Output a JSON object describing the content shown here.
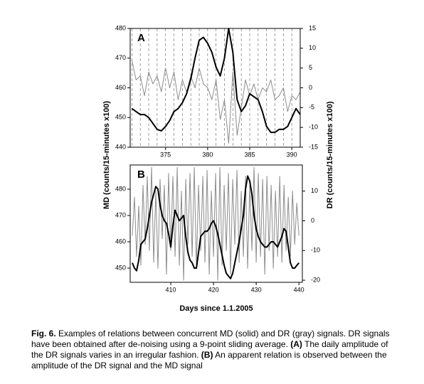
{
  "chart_data": [
    {
      "type": "line",
      "panel_label": "A",
      "x": [
        371,
        371.5,
        372,
        372.5,
        373,
        373.5,
        374,
        374.5,
        375,
        375.5,
        376,
        376.5,
        377,
        377.5,
        378,
        378.5,
        379,
        379.5,
        380,
        380.5,
        381,
        381.5,
        382,
        382.5,
        383,
        383.5,
        384,
        384.5,
        385,
        385.5,
        386,
        386.5,
        387,
        387.5,
        388,
        388.5,
        389,
        389.5,
        390,
        390.5,
        391
      ],
      "xlim": [
        370.8,
        391
      ],
      "xticks": [
        375,
        380,
        385,
        390
      ],
      "ylim": [
        440,
        480
      ],
      "yticks": [
        440,
        450,
        460,
        470,
        480
      ],
      "y2lim": [
        -15,
        15
      ],
      "y2ticks": [
        -15,
        -10,
        -5,
        0,
        5,
        10,
        15
      ],
      "day_grid": true,
      "series": [
        {
          "name": "MD",
          "color": "#000000",
          "values": [
            453,
            452,
            451,
            451,
            450,
            448,
            446,
            445.5,
            447,
            449,
            452,
            453,
            455,
            458,
            463,
            470,
            476,
            477,
            475,
            472,
            467,
            464,
            470,
            480,
            472,
            456,
            452,
            454,
            458,
            457,
            456,
            452,
            447,
            445,
            445,
            446,
            446,
            447,
            450,
            453,
            451
          ]
        },
        {
          "name": "DR",
          "color": "#8c8c8c",
          "axis": "y2",
          "values": [
            7,
            2,
            3,
            -2,
            4,
            1,
            3,
            -1,
            5,
            0,
            4,
            -3,
            2,
            -1,
            3,
            0,
            5,
            1,
            0,
            -3,
            2,
            -8,
            -3,
            -14,
            4,
            -12,
            -5,
            2,
            -2,
            1,
            -3,
            0,
            -1,
            2,
            -3,
            -2,
            0,
            -6,
            -2,
            -3,
            -1
          ]
        }
      ]
    },
    {
      "type": "line",
      "panel_label": "B",
      "x": [
        401,
        401.5,
        402,
        402.5,
        403,
        403.5,
        404,
        404.5,
        405,
        405.5,
        406,
        406.5,
        407,
        407.5,
        408,
        408.5,
        409,
        409.5,
        410,
        410.5,
        411,
        411.5,
        412,
        412.5,
        413,
        413.5,
        414,
        414.5,
        415,
        415.5,
        416,
        416.5,
        417,
        417.5,
        418,
        418.5,
        419,
        419.5,
        420,
        420.5,
        421,
        421.5,
        422,
        422.5,
        423,
        423.5,
        424,
        424.5,
        425,
        425.5,
        426,
        426.5,
        427,
        427.5,
        428,
        428.5,
        429,
        429.5,
        430,
        430.5,
        431,
        431.5,
        432,
        432.5,
        433,
        433.5,
        434,
        434.5,
        435,
        435.5,
        436,
        436.5,
        437,
        437.5,
        438,
        438.5,
        439,
        439.5,
        440
      ],
      "xlim": [
        400.5,
        440.8
      ],
      "xticks": [
        410,
        420,
        430,
        440
      ],
      "ylim": [
        444.6,
        489.2
      ],
      "yticks": [
        450,
        460,
        470,
        480
      ],
      "y2lim": [
        -20.7,
        18.8
      ],
      "y2ticks": [
        -20,
        -10,
        0,
        10
      ],
      "day_grid": false,
      "series": [
        {
          "name": "MD",
          "color": "#000000",
          "values": [
            452,
            450,
            449,
            453,
            459,
            460,
            461,
            465,
            470,
            475,
            478,
            481,
            480,
            474,
            470,
            468,
            467,
            463,
            458,
            466,
            472,
            470,
            468,
            469,
            470,
            462,
            456,
            453,
            452,
            450,
            450,
            456,
            462,
            463,
            464,
            464,
            465,
            467,
            468,
            466,
            463,
            459,
            455,
            451,
            448,
            447,
            446,
            448,
            452,
            456,
            460,
            465,
            470,
            480,
            485,
            483,
            478,
            470,
            465,
            462,
            460,
            459,
            458,
            458,
            459,
            460,
            460,
            459,
            458,
            460,
            462,
            465,
            464,
            458,
            452,
            450,
            450,
            451,
            452
          ]
        },
        {
          "name": "DR",
          "color": "#8c8c8c",
          "axis": "y2",
          "values": [
            -5,
            8,
            -12,
            5,
            -15,
            12,
            -8,
            15,
            -10,
            18,
            -14,
            10,
            -16,
            14,
            -6,
            12,
            -18,
            16,
            -10,
            15,
            -12,
            18,
            -15,
            10,
            -20,
            14,
            -8,
            16,
            -12,
            18,
            -16,
            12,
            -10,
            15,
            -14,
            17,
            -18,
            10,
            -12,
            16,
            -20,
            18,
            -15,
            12,
            -10,
            16,
            -18,
            14,
            -8,
            17,
            -14,
            10,
            -12,
            15,
            -16,
            12,
            -10,
            18,
            -14,
            16,
            -12,
            14,
            -18,
            15,
            -10,
            12,
            -16,
            10,
            -12,
            15,
            -14,
            12,
            -10,
            8,
            -12,
            10,
            -8,
            6,
            -5
          ]
        }
      ]
    }
  ],
  "y_label": "MD (counts/15-minutes x100)",
  "y2_label": "DR (counts/15-minutes x100)",
  "x_label": "Days since 1.1.2005",
  "caption": [
    {
      "text": "Fig. 6.",
      "bold": true
    },
    {
      "text": " Examples of relations between concurrent MD (solid) and DR (gray) signals. DR signals have been obtained after de-noising using a 9-point sliding average. ",
      "bold": false
    },
    {
      "text": "(A)",
      "bold": true
    },
    {
      "text": " The daily amplitude of the DR signals varies in an irregular fashion. ",
      "bold": false
    },
    {
      "text": "(B)",
      "bold": true
    },
    {
      "text": " An apparent relation is observed between the amplitude of the DR signal and the MD signal",
      "bold": false
    }
  ]
}
